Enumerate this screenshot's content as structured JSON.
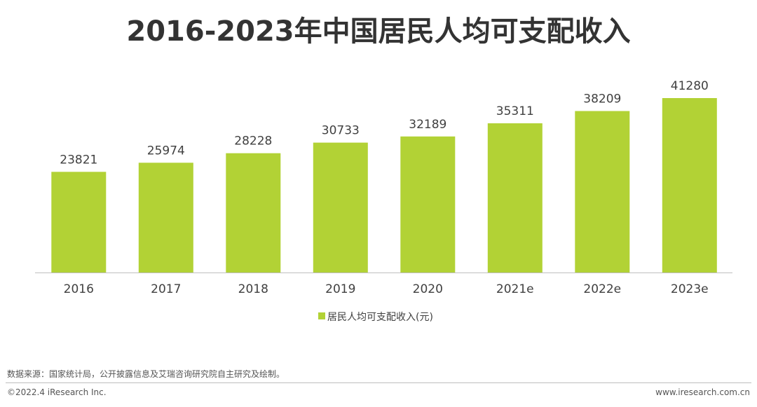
{
  "colors": {
    "bar": "#b2d235",
    "axis": "#bfbfbf",
    "text": "#404040"
  },
  "chart_data": {
    "type": "bar",
    "title": "2016-2023年中国居民人均可支配收入",
    "categories": [
      "2016",
      "2017",
      "2018",
      "2019",
      "2020",
      "2021e",
      "2022e",
      "2023e"
    ],
    "series": [
      {
        "name": "居民人均可支配收入(元)",
        "values": [
          23821,
          25974,
          28228,
          30733,
          32189,
          35311,
          38209,
          41280
        ]
      }
    ],
    "legend_position": "bottom-center",
    "grid": false,
    "ylim": [
      0,
      41280
    ]
  },
  "footer": {
    "source": "数据来源：国家统计局，公开披露信息及艾瑞咨询研究院自主研究及绘制。",
    "copyright": "©2022.4 iResearch Inc.",
    "website": "www.iresearch.com.cn"
  }
}
